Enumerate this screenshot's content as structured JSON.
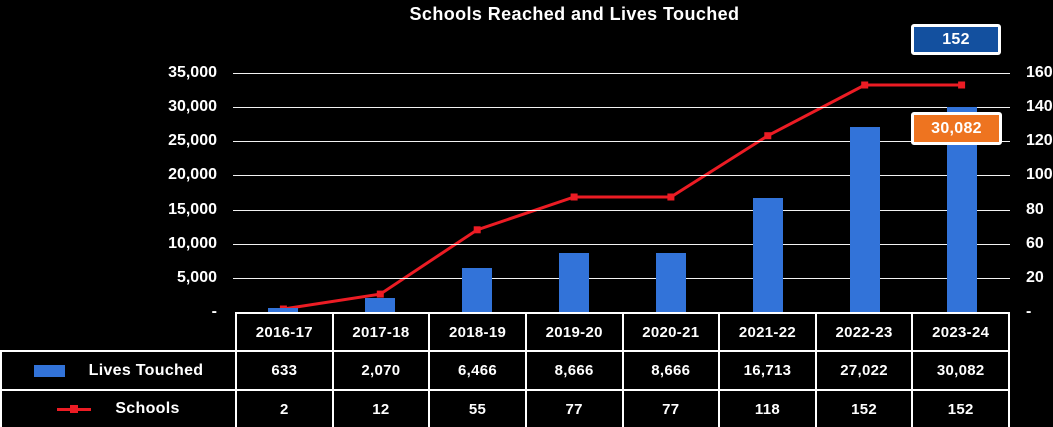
{
  "title": "Schools Reached and Lives Touched",
  "colors": {
    "background": "#000000",
    "bar_blue": "#3273d9",
    "line_red": "#ec1c24",
    "callout_blue_bg": "#13509f",
    "callout_orange_bg": "#ee7420",
    "grid": "#ffffff",
    "text": "#ffffff"
  },
  "callouts": {
    "schools_max": "152",
    "lives_max": "30,082"
  },
  "left_axis": {
    "labels": [
      "35,000",
      "30,000",
      "25,000",
      "20,000",
      "15,000",
      "10,000",
      "5,000",
      "-"
    ],
    "max": 35000
  },
  "right_axis": {
    "labels": [
      "160",
      "140",
      "120",
      "100",
      "80",
      "60",
      "20",
      "-"
    ],
    "max": 160
  },
  "chart_data": {
    "type": "bar+line",
    "title": "Schools Reached and Lives Touched",
    "categories": [
      "2016-17",
      "2017-18",
      "2018-19",
      "2019-20",
      "2020-21",
      "2021-22",
      "2022-23",
      "2023-24"
    ],
    "series": [
      {
        "name": "Lives Touched",
        "type": "bar",
        "axis": "left",
        "color": "#3273d9",
        "values": [
          633,
          2070,
          6466,
          8666,
          8666,
          16713,
          27022,
          30082
        ],
        "labels": [
          "633",
          "2,070",
          "6,466",
          "8,666",
          "8,666",
          "16,713",
          "27,022",
          "30,082"
        ]
      },
      {
        "name": "Schools",
        "type": "line",
        "axis": "right",
        "color": "#ec1c24",
        "values": [
          2,
          12,
          55,
          77,
          77,
          118,
          152,
          152
        ],
        "labels": [
          "2",
          "12",
          "55",
          "77",
          "77",
          "118",
          "152",
          "152"
        ]
      }
    ],
    "left_ylim": [
      0,
      35000
    ],
    "right_ylim": [
      0,
      160
    ],
    "grid": true,
    "legend_position": "table-left-column"
  }
}
